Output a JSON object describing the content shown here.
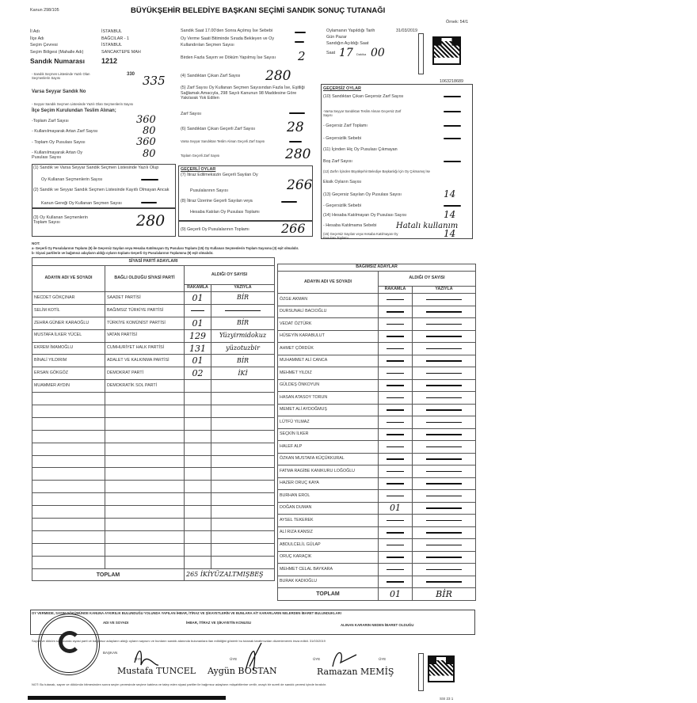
{
  "header": {
    "law": "Kanun 298/105",
    "title": "BÜYÜKŞEHİR BELEDİYE BAŞKANI SEÇİMİ SANDIK SONUÇ TUTANAĞI",
    "form_no": "Örnek: 54/1",
    "barcode_number": "1063218689"
  },
  "info": [
    {
      "label": "İl Adı",
      "value": "İSTANBUL"
    },
    {
      "label": "İlçe Adı",
      "value": "BAĞCILAR - 1"
    },
    {
      "label": "Seçim Çevresi",
      "value": "İSTANBUL"
    },
    {
      "label": "Seçim Bölgesi (Mahalle Adı)",
      "value": "SANCAKTEPE MAH"
    }
  ],
  "ballot_box": {
    "label": "Sandık Numarası",
    "value": "1212"
  },
  "opening": {
    "late_open_reason": "Sandık Saat 17.00'den Sonra Açılmış İse Sebebi",
    "late_open_value": "—",
    "queue_voters": "Oy Verme Saati Bitiminde Sırada Bekleyen ve Oy Kullandırılan Seçmen Sayısı",
    "queue_voters_value": "—",
    "recount": "Birden Fazla Sayım ve Döküm Yapılmış İse Sayısı",
    "recount_value": "2",
    "date_label": "Oylamanın Yapıldığı Tarih",
    "date": "31/03/2019",
    "day_label": "Gün",
    "day": "Pazar",
    "open_time_label": "Sandığın Açıldığı Saat",
    "hour_label": "Saat",
    "hour": "17",
    "minute_label": "Dakika",
    "minute": "00"
  },
  "left_col": {
    "registered_label": "- Sandık Seçmen Listesinde Yazılı Olan Seçmenlerin Sayısı",
    "registered_printed": "330",
    "registered_hand": "335",
    "mobile_no_label": "Varsa Seyyar Sandık No",
    "mobile_voters_label": "- Seyyar Sandık Seçmen Listesinde Yazılı Olan Seçmenlerin Sayısı",
    "received_label": "İlçe Seçim Kurulundan Teslim Alınan;",
    "total_envelopes_label": "-Toplam Zarf Sayısı",
    "total_envelopes": "360",
    "unused_envelopes_label": "- Kullanılmayarak Artan Zarf Sayısı",
    "unused_envelopes": "80",
    "total_ballots_label": "- Toplam Oy Pusulası Sayısı",
    "total_ballots": "360",
    "unused_ballots_label": "- Kullanılmayarak Artan Oy Pusulası Sayısı",
    "unused_ballots": "80",
    "item1_label": "(1) Sandık ve Varsa Seyyar Sandık Seçmen Listesinde Yazılı Olup",
    "item1_label2": "Oy Kullanan Seçmenlerin Sayısı",
    "item1": "—",
    "item2_label": "(2) Sandık ve Seyyar Sandık Seçmen Listesinde Kayıtlı Olmayan Ancak",
    "item2_label2": "Kanun Gereği Oy Kullanan Seçmen Sayısı",
    "item2": "—",
    "item3_label": "(3) Oy Kullanan Seçmenlerin Toplam Sayısı",
    "item3": "280"
  },
  "mid_col": {
    "item4_label": "(4) Sandıktan Çıkan Zarf Sayısı",
    "item4": "280",
    "item5_label": "(5) Zarf Sayısı Oy Kullanan Seçmen Sayısından Fazla İse, Eşitliği Sağlamak Amacıyla, 298 Sayılı Kanunun 98 Maddesine Göre Yakılarak Yok Edilen",
    "envelope_count_label": "Zarf Sayısı",
    "envelope_count": "—",
    "item6_label": "(6) Sandıktan Çıkan Geçerli Zarf Sayısı",
    "item6": "28",
    "mobile_valid_label": "Varsa Seyyar Sandıktan Teslim Alınan Geçerli Zarf Sayısı",
    "mobile_valid": "—",
    "total_valid_env_label": "Toplam Geçerli Zarf Sayısı",
    "total_valid_env": "280",
    "valid_title": "GEÇERLİ OYLAR",
    "item7_label": "(7) İtiraz Edilmeksizin Geçerli Sayılan Oy",
    "item7_label2": "Pusulalarının Sayısı",
    "item7": "266",
    "item8_label": "(8) İtiraz Üzerine Geçerli Sayılan veya",
    "item8_label2": "Hesaba Katılan Oy Pusulası Toplamı",
    "item8": "—",
    "item9_label": "(9) Geçerli Oy Pusulalarının Toplamı",
    "item9": "266"
  },
  "invalid": {
    "title": "GEÇERSİZ OYLAR",
    "rows": [
      {
        "label": "(10) Sandıktan Çıkan Geçersiz Zarf Sayısı",
        "value": "—"
      },
      {
        "label": "-Varsa Seyyar Sandıktan Teslim Alınan Geçersiz Zarf Sayısı",
        "value": "—"
      },
      {
        "label": "- Geçersiz Zarf Toplamı",
        "value": "—"
      },
      {
        "label": "- Geçersizlik Sebebi",
        "value": "—"
      },
      {
        "label": "(11) İçinden Hiç Oy Pusulası Çıkmayan",
        "value": ""
      },
      {
        "label": "Boş Zarf Sayısı",
        "value": "—"
      },
      {
        "label": "(12) Zarfın İçinden Büyükşehir Belediye Başkanlığı İçin Oy Çıkmamış İse",
        "value": ""
      },
      {
        "label": "Eksik Oyların Sayısı",
        "value": ""
      },
      {
        "label": "(13) Geçersiz Sayılan Oy Pusulası Sayısı",
        "value": "14"
      },
      {
        "label": "- Geçersizlik Sebebi",
        "value": "—"
      },
      {
        "label": "(14) Hesaba Katılmayan Oy Pusulası Sayısı",
        "value": "14"
      },
      {
        "label": "- Hesaba Katılmama Sebebi",
        "value": "Hatalı kullanım"
      },
      {
        "label": "(15) Geçersiz Sayılan veya Hesaba Katılmayan Oy Pusulası Toplamı",
        "value": "14"
      }
    ]
  },
  "notes": {
    "title": "NOT:",
    "a": "a- Geçerli Oy Pusulalarının Toplamı (9) ile Geçersiz Sayılan veya Hesaba Katılmayan Oy Pusulası Toplamı (15) Oy Kullanan Seçmenlerin Toplam Sayısına (3) eşit olmalıdır.",
    "b": "b- Siyasi partilerin ve bağımsız adayların aldığı oyların toplamı Geçerli Oy Pusulalarının Toplamına (9) eşit olmalıdır."
  },
  "party_table": {
    "title": "SİYASİ PARTİ ADAYLARI",
    "col_name": "ADAYIN ADI VE SOYADI",
    "col_party": "BAĞLI OLDUĞU SİYASİ PARTİ",
    "col_votes": "ALDIĞI OY SAYISI",
    "col_num": "RAKAMLA",
    "col_text": "YAZIYLA",
    "rows": [
      {
        "name": "NECDET GÖKÇINAR",
        "party": "SAADET PARTİSİ",
        "num": "01",
        "text": "BİR"
      },
      {
        "name": "SELİM KOTİL",
        "party": "BAĞIMSIZ TÜRKİYE PARTİSİ",
        "num": "—",
        "text": "—"
      },
      {
        "name": "ZEHRA GÜNER KARAOĞLU",
        "party": "TÜRKİYE KOMÜNİST PARTİSİ",
        "num": "01",
        "text": "BİR"
      },
      {
        "name": "MUSTAFA İLKER YÜCEL",
        "party": "VATAN PARTİSİ",
        "num": "129",
        "text": "Yüzyirmidokuz"
      },
      {
        "name": "EKREM İMAMOĞLU",
        "party": "CUMHURİYET HALK PARTİSİ",
        "num": "131",
        "text": "yüzotuzbir"
      },
      {
        "name": "BİNALİ YILDIRIM",
        "party": "ADALET VE KALKINMA PARTİSİ",
        "num": "01",
        "text": "BİR"
      },
      {
        "name": "ERSAN GÖKGÖZ",
        "party": "DEMOKRAT PARTİ",
        "num": "02",
        "text": "İKİ"
      },
      {
        "name": "MUAMMER AYDIN",
        "party": "DEMOKRATİK SOL PARTİ",
        "num": "",
        "text": ""
      }
    ],
    "total_label": "TOPLAM",
    "total_num": "265",
    "total_text": "İKİYÜZALTMIŞBEŞ"
  },
  "independent_table": {
    "title": "BAĞIMSIZ ADAYLAR",
    "col_name": "ADAYIN ADI VE SOYADI",
    "col_votes": "ALDIĞI OY SAYISI",
    "col_num": "RAKAMLA",
    "col_text": "YAZIYLA",
    "rows": [
      {
        "name": "ÖZGE AKMAN",
        "num": "—",
        "text": "—"
      },
      {
        "name": "DURSUNALİ BACIOĞLU",
        "num": "—",
        "text": "—"
      },
      {
        "name": "VEDAT ÖZTÜRK",
        "num": "—",
        "text": "—"
      },
      {
        "name": "HÜSEYİN KARABULUT",
        "num": "—",
        "text": "—"
      },
      {
        "name": "AHMET ÇÖRDÜK",
        "num": "—",
        "text": "—"
      },
      {
        "name": "MUHAMMET ALİ CANCA",
        "num": "—",
        "text": "—"
      },
      {
        "name": "MEHMET YILDIZ",
        "num": "—",
        "text": "—"
      },
      {
        "name": "GÜLDEŞ ÖNKOYUN",
        "num": "—",
        "text": "—"
      },
      {
        "name": "HASAN ATASOY TORUN",
        "num": "—",
        "text": "—"
      },
      {
        "name": "MEMET ALİ AYDOĞMUŞ",
        "num": "—",
        "text": "—"
      },
      {
        "name": "LÜTFÜ YILMAZ",
        "num": "—",
        "text": "—"
      },
      {
        "name": "SEÇKİN İLKER",
        "num": "—",
        "text": "—"
      },
      {
        "name": "HALEF ALP",
        "num": "—",
        "text": "—"
      },
      {
        "name": "ÖZKAN MUSTAFA KÜÇÜKKURAL",
        "num": "—",
        "text": "—"
      },
      {
        "name": "FATMA RAGİBE KANIKURU LOĞOĞLU",
        "num": "—",
        "text": "—"
      },
      {
        "name": "HAZER ORUÇ KAYA",
        "num": "—",
        "text": "—"
      },
      {
        "name": "BURHAN EROL",
        "num": "—",
        "text": "—"
      },
      {
        "name": "DOĞAN DUMAN",
        "num": "01",
        "text": "—"
      },
      {
        "name": "AYSEL TEKEREK",
        "num": "—",
        "text": "—"
      },
      {
        "name": "ALİ RIZA KANSIZ",
        "num": "—",
        "text": "—"
      },
      {
        "name": "ABDULCELİL GÜLAP",
        "num": "—",
        "text": "—"
      },
      {
        "name": "ORUÇ KARAÇIK",
        "num": "—",
        "text": "—"
      },
      {
        "name": "MEHMET CELAL BAYKARA",
        "num": "—",
        "text": "—"
      },
      {
        "name": "BURAK KADIOĞLU",
        "num": "—",
        "text": "—"
      }
    ],
    "total_label": "TOPLAM",
    "total_num": "01",
    "total_text": "BİR"
  },
  "objections": {
    "title": "OY VERMEDE, SAYIM DÖKÜMÜNDE KANUNA AYKIRILIK BULUNDUĞU YOLUNDA YAPILAN İHBAR, İTİRAZ VE ŞİKAYETLERİN VE BUNLARA AİT KARARLARIN NELERDEN İBARET BULUNDUKLARI",
    "col_name": "ADI VE SOYADI",
    "col_subject": "İHBAR, İTİRAZ VE ŞİKAYETİN KONUSU",
    "col_decision": "ALINAN KARARIN NEDEN İBARET OLDUĞU"
  },
  "signatures": {
    "statement": "Sayım ve döküm sonucunda siyasi parti ve bağımsız adayların aldığı oyların sayısını ve bunların sandık alanında bulunanlara ilan edildiğini gösterir bu tutanak tarafımızdan düzenlenerek imza edildi. 31/03/2019",
    "chair_label": "BAŞKAN",
    "member_label": "ÜYE",
    "members": [
      "Mustafa TUNCEL",
      "Aygün BOSTAN",
      "Ramazan MEMİŞ"
    ],
    "note": "NOT: Bu tutanak, sayım ve dökümün bitmesinden sonra seçim çevresinde seçime katılma ve talep eden siyasi partiler ile bağımsız adayların müşahitlerine verilir, onaylı bir sureti de sandık çevresi içinde bırakılır.",
    "footer_code": "SSI 23 1"
  }
}
